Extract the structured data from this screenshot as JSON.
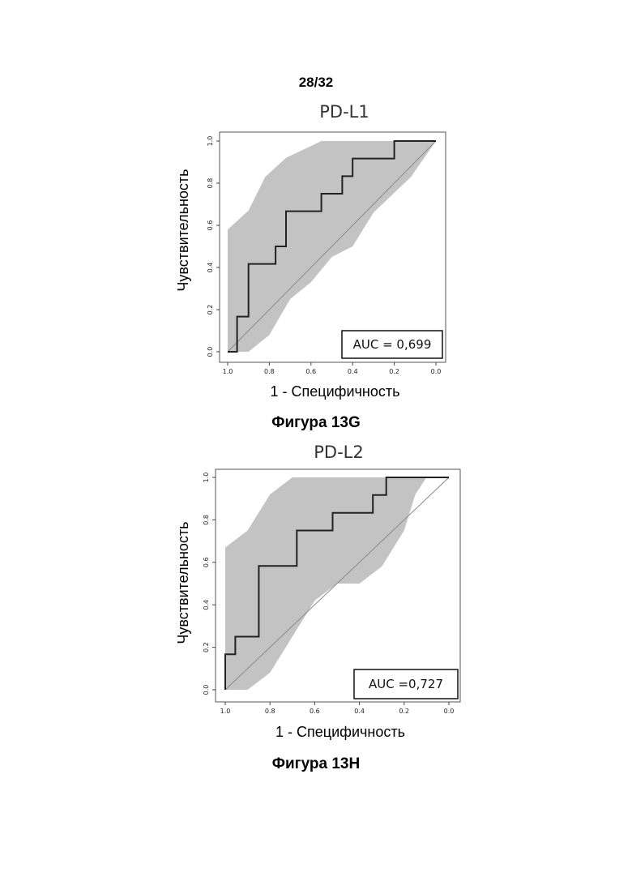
{
  "page": {
    "number": "28/32"
  },
  "figures": [
    {
      "caption": "Фигура 13G"
    },
    {
      "caption": "Фигура 13H"
    }
  ],
  "chart_data": [
    {
      "type": "line",
      "title": "PD-L1",
      "xlabel": "1 - Специфичность",
      "ylabel": "Чувствительность",
      "xlim": [
        1.0,
        0.0
      ],
      "ylim": [
        0.0,
        1.0
      ],
      "x_reversed": true,
      "xticks": [
        "1.0",
        "0.8",
        "0.6",
        "0.4",
        "0.2",
        "0.0"
      ],
      "yticks": [
        "0.0",
        "0.2",
        "0.4",
        "0.6",
        "0.8",
        "1.0"
      ],
      "grid": false,
      "annotation": "AUC = 0,699",
      "reference_line": [
        [
          1.0,
          0.0
        ],
        [
          0.0,
          1.0
        ]
      ],
      "confidence_band": {
        "upper": [
          [
            1.0,
            0.58
          ],
          [
            0.9,
            0.67
          ],
          [
            0.82,
            0.83
          ],
          [
            0.72,
            0.92
          ],
          [
            0.55,
            1.0
          ],
          [
            0.3,
            1.0
          ],
          [
            0.0,
            1.0
          ]
        ],
        "lower": [
          [
            1.0,
            0.0
          ],
          [
            0.9,
            0.0
          ],
          [
            0.8,
            0.08
          ],
          [
            0.7,
            0.25
          ],
          [
            0.6,
            0.33
          ],
          [
            0.5,
            0.45
          ],
          [
            0.4,
            0.5
          ],
          [
            0.3,
            0.66
          ],
          [
            0.12,
            0.83
          ],
          [
            0.0,
            1.0
          ]
        ]
      },
      "series": [
        {
          "points": [
            [
              1.0,
              0.0
            ],
            [
              0.955,
              0.0
            ],
            [
              0.955,
              0.167
            ],
            [
              0.9,
              0.167
            ],
            [
              0.9,
              0.417
            ],
            [
              0.77,
              0.417
            ],
            [
              0.77,
              0.5
            ],
            [
              0.72,
              0.5
            ],
            [
              0.72,
              0.667
            ],
            [
              0.55,
              0.667
            ],
            [
              0.55,
              0.75
            ],
            [
              0.45,
              0.75
            ],
            [
              0.45,
              0.833
            ],
            [
              0.4,
              0.833
            ],
            [
              0.4,
              0.917
            ],
            [
              0.2,
              0.917
            ],
            [
              0.2,
              1.0
            ],
            [
              0.0,
              1.0
            ]
          ]
        }
      ]
    },
    {
      "type": "line",
      "title": "PD-L2",
      "xlabel": "1 - Специфичность",
      "ylabel": "Чувствительность",
      "xlim": [
        1.0,
        0.0
      ],
      "ylim": [
        0.0,
        1.0
      ],
      "x_reversed": true,
      "xticks": [
        "1.0",
        "0.8",
        "0.6",
        "0.4",
        "0.2",
        "0.0"
      ],
      "yticks": [
        "0.0",
        "0.2",
        "0.4",
        "0.6",
        "0.8",
        "1.0"
      ],
      "grid": false,
      "annotation": "AUC =0,727",
      "reference_line": [
        [
          1.0,
          0.0
        ],
        [
          0.0,
          1.0
        ]
      ],
      "confidence_band": {
        "upper": [
          [
            1.0,
            0.67
          ],
          [
            0.9,
            0.75
          ],
          [
            0.8,
            0.92
          ],
          [
            0.7,
            1.0
          ],
          [
            0.0,
            1.0
          ]
        ],
        "lower": [
          [
            1.0,
            0.0
          ],
          [
            0.9,
            0.0
          ],
          [
            0.8,
            0.08
          ],
          [
            0.7,
            0.25
          ],
          [
            0.6,
            0.42
          ],
          [
            0.5,
            0.5
          ],
          [
            0.4,
            0.5
          ],
          [
            0.3,
            0.58
          ],
          [
            0.2,
            0.75
          ],
          [
            0.15,
            0.92
          ],
          [
            0.1,
            1.0
          ],
          [
            0.0,
            1.0
          ]
        ]
      },
      "series": [
        {
          "points": [
            [
              1.0,
              0.0
            ],
            [
              1.0,
              0.167
            ],
            [
              0.955,
              0.167
            ],
            [
              0.955,
              0.25
            ],
            [
              0.85,
              0.25
            ],
            [
              0.85,
              0.583
            ],
            [
              0.68,
              0.583
            ],
            [
              0.68,
              0.75
            ],
            [
              0.52,
              0.75
            ],
            [
              0.52,
              0.833
            ],
            [
              0.34,
              0.833
            ],
            [
              0.34,
              0.917
            ],
            [
              0.28,
              0.917
            ],
            [
              0.28,
              1.0
            ],
            [
              0.0,
              1.0
            ]
          ]
        }
      ]
    }
  ]
}
